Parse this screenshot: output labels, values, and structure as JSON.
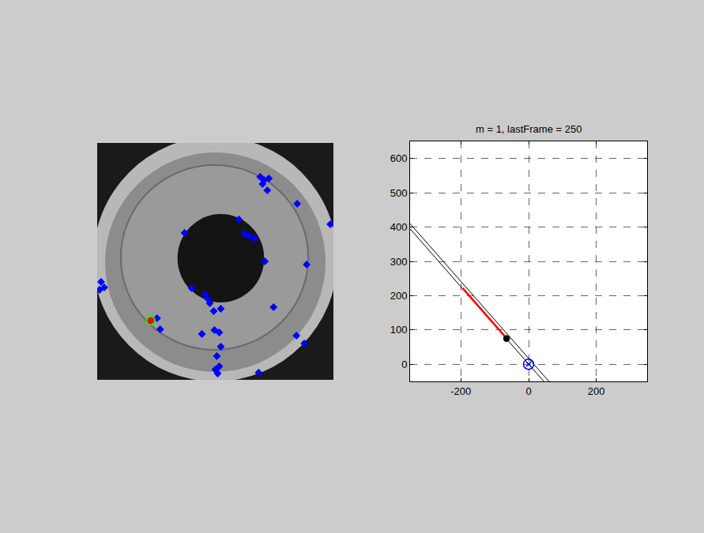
{
  "chart_data": [
    {
      "type": "scatter",
      "tick_labels": false,
      "xlim": [
        0,
        300
      ],
      "ylim": [
        300,
        0
      ],
      "series": [
        {
          "type": "scatter",
          "color": "#0000ff",
          "marker": "diamond",
          "x": [
            207,
            212,
            218,
            210,
            216,
            254,
            296,
            180,
            187,
            193,
            200,
            111,
            213,
            266,
            5,
            9,
            3,
            120,
            137,
            140,
            143,
            157,
            148,
            224,
            76,
            80,
            133,
            149,
            155,
            253,
            263,
            157,
            152,
            155,
            150,
            153,
            205
          ],
          "y": [
            43,
            47,
            45,
            52,
            60,
            77,
            103,
            97,
            115,
            118,
            121,
            114,
            150,
            154,
            176,
            183,
            186,
            184,
            192,
            197,
            203,
            210,
            213,
            208,
            222,
            236,
            242,
            237,
            240,
            244,
            254,
            258,
            270,
            283,
            287,
            292,
            291
          ]
        },
        {
          "type": "scatter",
          "color": "#00ff00",
          "marker": "circle-open",
          "x": [
            68
          ],
          "y": [
            225
          ]
        },
        {
          "type": "scatter",
          "color": "#ff0000",
          "marker": "circle",
          "x": [
            68
          ],
          "y": [
            225
          ]
        }
      ]
    },
    {
      "type": "line",
      "title": "m = 1, lastFrame = 250",
      "xlim": [
        -350,
        350
      ],
      "ylim": [
        -50,
        650
      ],
      "xticks": [
        -200,
        0,
        200
      ],
      "yticks": [
        0,
        100,
        200,
        300,
        400,
        500,
        600
      ],
      "grid": true,
      "series": [
        {
          "type": "line",
          "color": "#000000",
          "line_style": "solid",
          "x": [
            -350,
            60
          ],
          "y": [
            410,
            -50
          ]
        },
        {
          "type": "line",
          "color": "#000000",
          "line_style": "solid",
          "x": [
            -350,
            45
          ],
          "y": [
            395,
            -50
          ]
        },
        {
          "type": "line",
          "color": "#ff0000",
          "line_style": "solid",
          "x": [
            -195,
            -60
          ],
          "y": [
            222,
            70
          ]
        },
        {
          "type": "scatter",
          "color": "#000000",
          "marker": "circle",
          "x": [
            -65
          ],
          "y": [
            75
          ]
        },
        {
          "type": "scatter",
          "color": "#0000ff",
          "marker": "circle-open",
          "x": [
            0
          ],
          "y": [
            0
          ]
        },
        {
          "type": "scatter",
          "color": "#0000ff",
          "marker": "x-thin-open",
          "x": [
            0
          ],
          "y": [
            0
          ]
        }
      ]
    }
  ]
}
